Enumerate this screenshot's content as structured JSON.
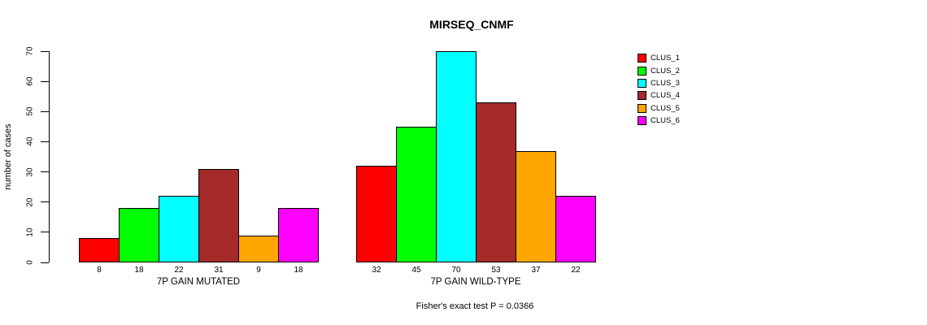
{
  "chart_data": {
    "type": "bar",
    "title": "MIRSEQ_CNMF",
    "ylabel": "number of cases",
    "xlabel": "",
    "ylim": [
      0,
      70
    ],
    "yticks": [
      0,
      10,
      20,
      30,
      40,
      50,
      60,
      70
    ],
    "grid": false,
    "legend_position": "right",
    "categories": [
      "7P GAIN MUTATED",
      "7P GAIN WILD-TYPE"
    ],
    "series": [
      {
        "name": "CLUS_1",
        "color": "#ff0000",
        "values": [
          8,
          32
        ]
      },
      {
        "name": "CLUS_2",
        "color": "#00ff00",
        "values": [
          18,
          45
        ]
      },
      {
        "name": "CLUS_3",
        "color": "#00ffff",
        "values": [
          22,
          70
        ]
      },
      {
        "name": "CLUS_4",
        "color": "#a52a2a",
        "values": [
          31,
          53
        ]
      },
      {
        "name": "CLUS_5",
        "color": "#ffa500",
        "values": [
          9,
          37
        ]
      },
      {
        "name": "CLUS_6",
        "color": "#ff00ff",
        "values": [
          18,
          22
        ]
      }
    ],
    "bar_value_labels": true,
    "annotation": "Fisher's exact test P = 0.0366"
  }
}
